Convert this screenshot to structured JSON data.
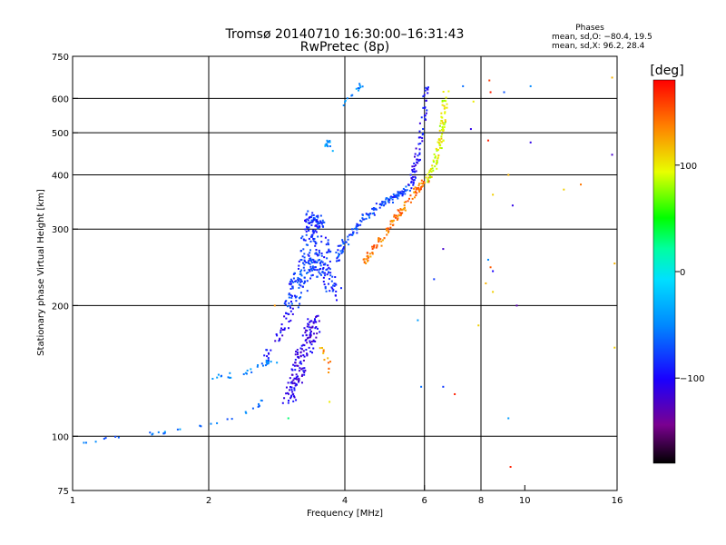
{
  "chart_data": {
    "type": "scatter",
    "title": "Tromsø 20140710 16:30:00–16:31:43",
    "subtitle": "RwPretec (8p)",
    "xlabel": "Frequency [MHz]",
    "ylabel": "Stationary phase Virtual Height [km]",
    "x_scale": "log",
    "y_scale": "log",
    "xlim": [
      1,
      16
    ],
    "ylim": [
      75,
      750
    ],
    "x_ticks": [
      1,
      2,
      4,
      6,
      8,
      10,
      16
    ],
    "y_ticks": [
      75,
      100,
      200,
      300,
      400,
      500,
      600,
      750
    ],
    "x_gridlines": [
      2,
      4,
      6,
      8
    ],
    "y_gridlines": [
      100,
      200,
      300,
      400,
      500,
      600
    ],
    "grid": true,
    "phase_stats": {
      "heading": "Phases",
      "line1": "mean, sd,O: −80.4, 19.5",
      "line2": "mean, sd,X:  96.2, 28.4"
    },
    "colorbar": {
      "label": "[deg]",
      "ticks": [
        100,
        0,
        -100
      ],
      "tick_labels": [
        "100",
        "0",
        "−100"
      ],
      "range": [
        -180,
        180
      ],
      "position": "right"
    },
    "traces": [
      {
        "x": [
          1.05,
          1.2,
          1.4,
          1.6,
          1.8,
          2.0,
          2.2,
          2.4,
          2.55,
          2.62
        ],
        "y": [
          96,
          99,
          101,
          102,
          104,
          106,
          109,
          113,
          116,
          121
        ],
        "phase": -55,
        "spread": 0.012,
        "density": 32
      },
      {
        "x": [
          2.02,
          2.2,
          2.4,
          2.6,
          2.8
        ],
        "y": [
          135,
          138,
          140,
          145,
          150
        ],
        "phase": -50,
        "spread": 0.03,
        "density": 30
      },
      {
        "x": [
          2.65,
          2.8,
          2.95,
          3.05
        ],
        "y": [
          150,
          165,
          180,
          200
        ],
        "phase": -100,
        "spread": 0.04,
        "density": 35
      },
      {
        "x": [
          3.0,
          3.15,
          3.3,
          3.45
        ],
        "y": [
          120,
          140,
          165,
          185
        ],
        "phase": -110,
        "spread": 0.07,
        "density": 160
      },
      {
        "x": [
          3.05,
          3.2,
          3.35,
          3.5
        ],
        "y": [
          200,
          230,
          260,
          240
        ],
        "phase": -80,
        "spread": 0.09,
        "density": 140
      },
      {
        "x": [
          3.3,
          3.4,
          3.5,
          3.65,
          3.8
        ],
        "y": [
          270,
          320,
          300,
          240,
          210
        ],
        "phase": -85,
        "spread": 0.08,
        "density": 160
      },
      {
        "x": [
          3.8,
          4.0,
          4.3,
          4.6,
          5.0,
          5.3,
          5.6
        ],
        "y": [
          250,
          280,
          310,
          330,
          350,
          360,
          375
        ],
        "phase": -75,
        "spread": 0.035,
        "density": 140
      },
      {
        "x": [
          5.6,
          5.8,
          5.95,
          6.05
        ],
        "y": [
          380,
          440,
          520,
          640
        ],
        "phase": -100,
        "spread": 0.03,
        "density": 70
      },
      {
        "x": [
          4.4,
          4.6,
          4.9,
          5.2,
          5.5,
          5.8,
          6.1
        ],
        "y": [
          250,
          265,
          290,
          320,
          345,
          370,
          390
        ],
        "phase": 140,
        "spread": 0.03,
        "density": 120
      },
      {
        "x": [
          6.1,
          6.3,
          6.5,
          6.6,
          6.7
        ],
        "y": [
          390,
          420,
          470,
          540,
          620
        ],
        "phase": 95,
        "spread": 0.03,
        "density": 90
      },
      {
        "x": [
          3.7,
          3.65,
          3.8
        ],
        "y": [
          480,
          470,
          450
        ],
        "phase": -40,
        "spread": 0.02,
        "density": 15
      },
      {
        "x": [
          3.9,
          4.0,
          4.2,
          4.4
        ],
        "y": [
          570,
          590,
          620,
          650
        ],
        "phase": -50,
        "spread": 0.02,
        "density": 14
      },
      {
        "x": [
          3.55,
          3.65,
          3.7
        ],
        "y": [
          160,
          150,
          140
        ],
        "phase": 130,
        "spread": 0.03,
        "density": 12
      },
      {
        "x": [
          3.1,
          3.25
        ],
        "y": [
          230,
          225
        ],
        "phase": -70,
        "spread": 0.02,
        "density": 8
      }
    ],
    "scatter_points": [
      {
        "x": 8.35,
        "y": 660,
        "phase": 160
      },
      {
        "x": 8.4,
        "y": 620,
        "phase": 170
      },
      {
        "x": 7.3,
        "y": 640,
        "phase": -60
      },
      {
        "x": 7.7,
        "y": 590,
        "phase": 100
      },
      {
        "x": 7.6,
        "y": 510,
        "phase": -110
      },
      {
        "x": 8.3,
        "y": 480,
        "phase": 170
      },
      {
        "x": 9.2,
        "y": 400,
        "phase": 120
      },
      {
        "x": 8.5,
        "y": 360,
        "phase": 110
      },
      {
        "x": 9.4,
        "y": 340,
        "phase": -110
      },
      {
        "x": 6.6,
        "y": 270,
        "phase": -120
      },
      {
        "x": 8.3,
        "y": 255,
        "phase": -50
      },
      {
        "x": 8.4,
        "y": 245,
        "phase": 150
      },
      {
        "x": 8.5,
        "y": 240,
        "phase": -100
      },
      {
        "x": 8.2,
        "y": 225,
        "phase": 120
      },
      {
        "x": 8.5,
        "y": 215,
        "phase": 110
      },
      {
        "x": 9.6,
        "y": 200,
        "phase": -130
      },
      {
        "x": 6.3,
        "y": 230,
        "phase": -80
      },
      {
        "x": 5.8,
        "y": 185,
        "phase": -40
      },
      {
        "x": 7.9,
        "y": 180,
        "phase": 110
      },
      {
        "x": 5.9,
        "y": 130,
        "phase": -60
      },
      {
        "x": 6.6,
        "y": 130,
        "phase": -80
      },
      {
        "x": 7.0,
        "y": 125,
        "phase": 170
      },
      {
        "x": 9.2,
        "y": 110,
        "phase": -40
      },
      {
        "x": 9.3,
        "y": 85,
        "phase": 170
      },
      {
        "x": 10.3,
        "y": 640,
        "phase": -50
      },
      {
        "x": 10.3,
        "y": 475,
        "phase": -110
      },
      {
        "x": 9.0,
        "y": 620,
        "phase": -70
      },
      {
        "x": 12.2,
        "y": 370,
        "phase": 110
      },
      {
        "x": 13.3,
        "y": 380,
        "phase": 140
      },
      {
        "x": 15.6,
        "y": 445,
        "phase": -120
      },
      {
        "x": 15.6,
        "y": 670,
        "phase": 120
      },
      {
        "x": 15.8,
        "y": 250,
        "phase": 120
      },
      {
        "x": 15.8,
        "y": 160,
        "phase": 110
      },
      {
        "x": 3.0,
        "y": 110,
        "phase": 30
      },
      {
        "x": 2.8,
        "y": 200,
        "phase": 130
      },
      {
        "x": 3.7,
        "y": 120,
        "phase": 100
      }
    ]
  }
}
